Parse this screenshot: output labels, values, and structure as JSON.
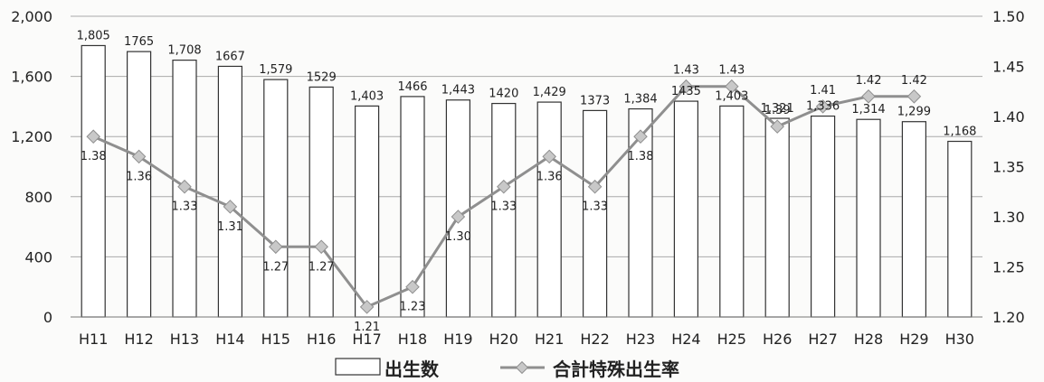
{
  "chart_data": {
    "type": "bar",
    "title": "",
    "xlabel": "",
    "ylabel": "",
    "categories": [
      "H11",
      "H12",
      "H13",
      "H14",
      "H15",
      "H16",
      "H17",
      "H18",
      "H19",
      "H20",
      "H21",
      "H22",
      "H23",
      "H24",
      "H25",
      "H26",
      "H27",
      "H28",
      "H29",
      "H30"
    ],
    "series": [
      {
        "name": "出生数",
        "type": "bar",
        "axis": "left",
        "values": [
          1805,
          1765,
          1708,
          1667,
          1579,
          1529,
          1403,
          1466,
          1443,
          1420,
          1429,
          1373,
          1384,
          1435,
          1403,
          1321,
          1336,
          1314,
          1299,
          1168
        ],
        "labels": [
          "1,805",
          "1765",
          "1,708",
          "1667",
          "1,579",
          "1529",
          "1,403",
          "1466",
          "1,443",
          "1420",
          "1,429",
          "1373",
          "1,384",
          "1435",
          "1,403",
          "1,321",
          "1,336",
          "1,314",
          "1,299",
          "1,168"
        ],
        "fill": "#ffffff",
        "stroke": "#333333"
      },
      {
        "name": "合計特殊出生率",
        "type": "line",
        "axis": "right",
        "values": [
          1.38,
          1.36,
          1.33,
          1.31,
          1.27,
          1.27,
          1.21,
          1.23,
          1.3,
          1.33,
          1.36,
          1.33,
          1.38,
          1.43,
          1.43,
          1.39,
          1.41,
          1.42,
          1.42,
          null
        ],
        "labels": [
          "1.38",
          "1.36",
          "1.33",
          "1.31",
          "1.27",
          "1.27",
          "1.21",
          "1.23",
          "1.30",
          "1.33",
          "1.36",
          "1.33",
          "1.38",
          "1.43",
          "1.43",
          "1.39",
          "1.41",
          "1.42",
          "1.42",
          ""
        ],
        "color": "#8f8f8f",
        "marker_fill": "#c8c8c8"
      }
    ],
    "y_left": {
      "range": [
        0,
        2000
      ],
      "ticks": [
        "0",
        "400",
        "800",
        "1,200",
        "1,600",
        "2,000"
      ]
    },
    "y_right": {
      "range": [
        1.2,
        1.5
      ],
      "ticks": [
        "1.20",
        "1.25",
        "1.30",
        "1.35",
        "1.40",
        "1.45",
        "1.50"
      ]
    },
    "grid": true,
    "legend": {
      "position": "bottom",
      "items": [
        "出生数",
        "合計特殊出生率"
      ]
    }
  }
}
